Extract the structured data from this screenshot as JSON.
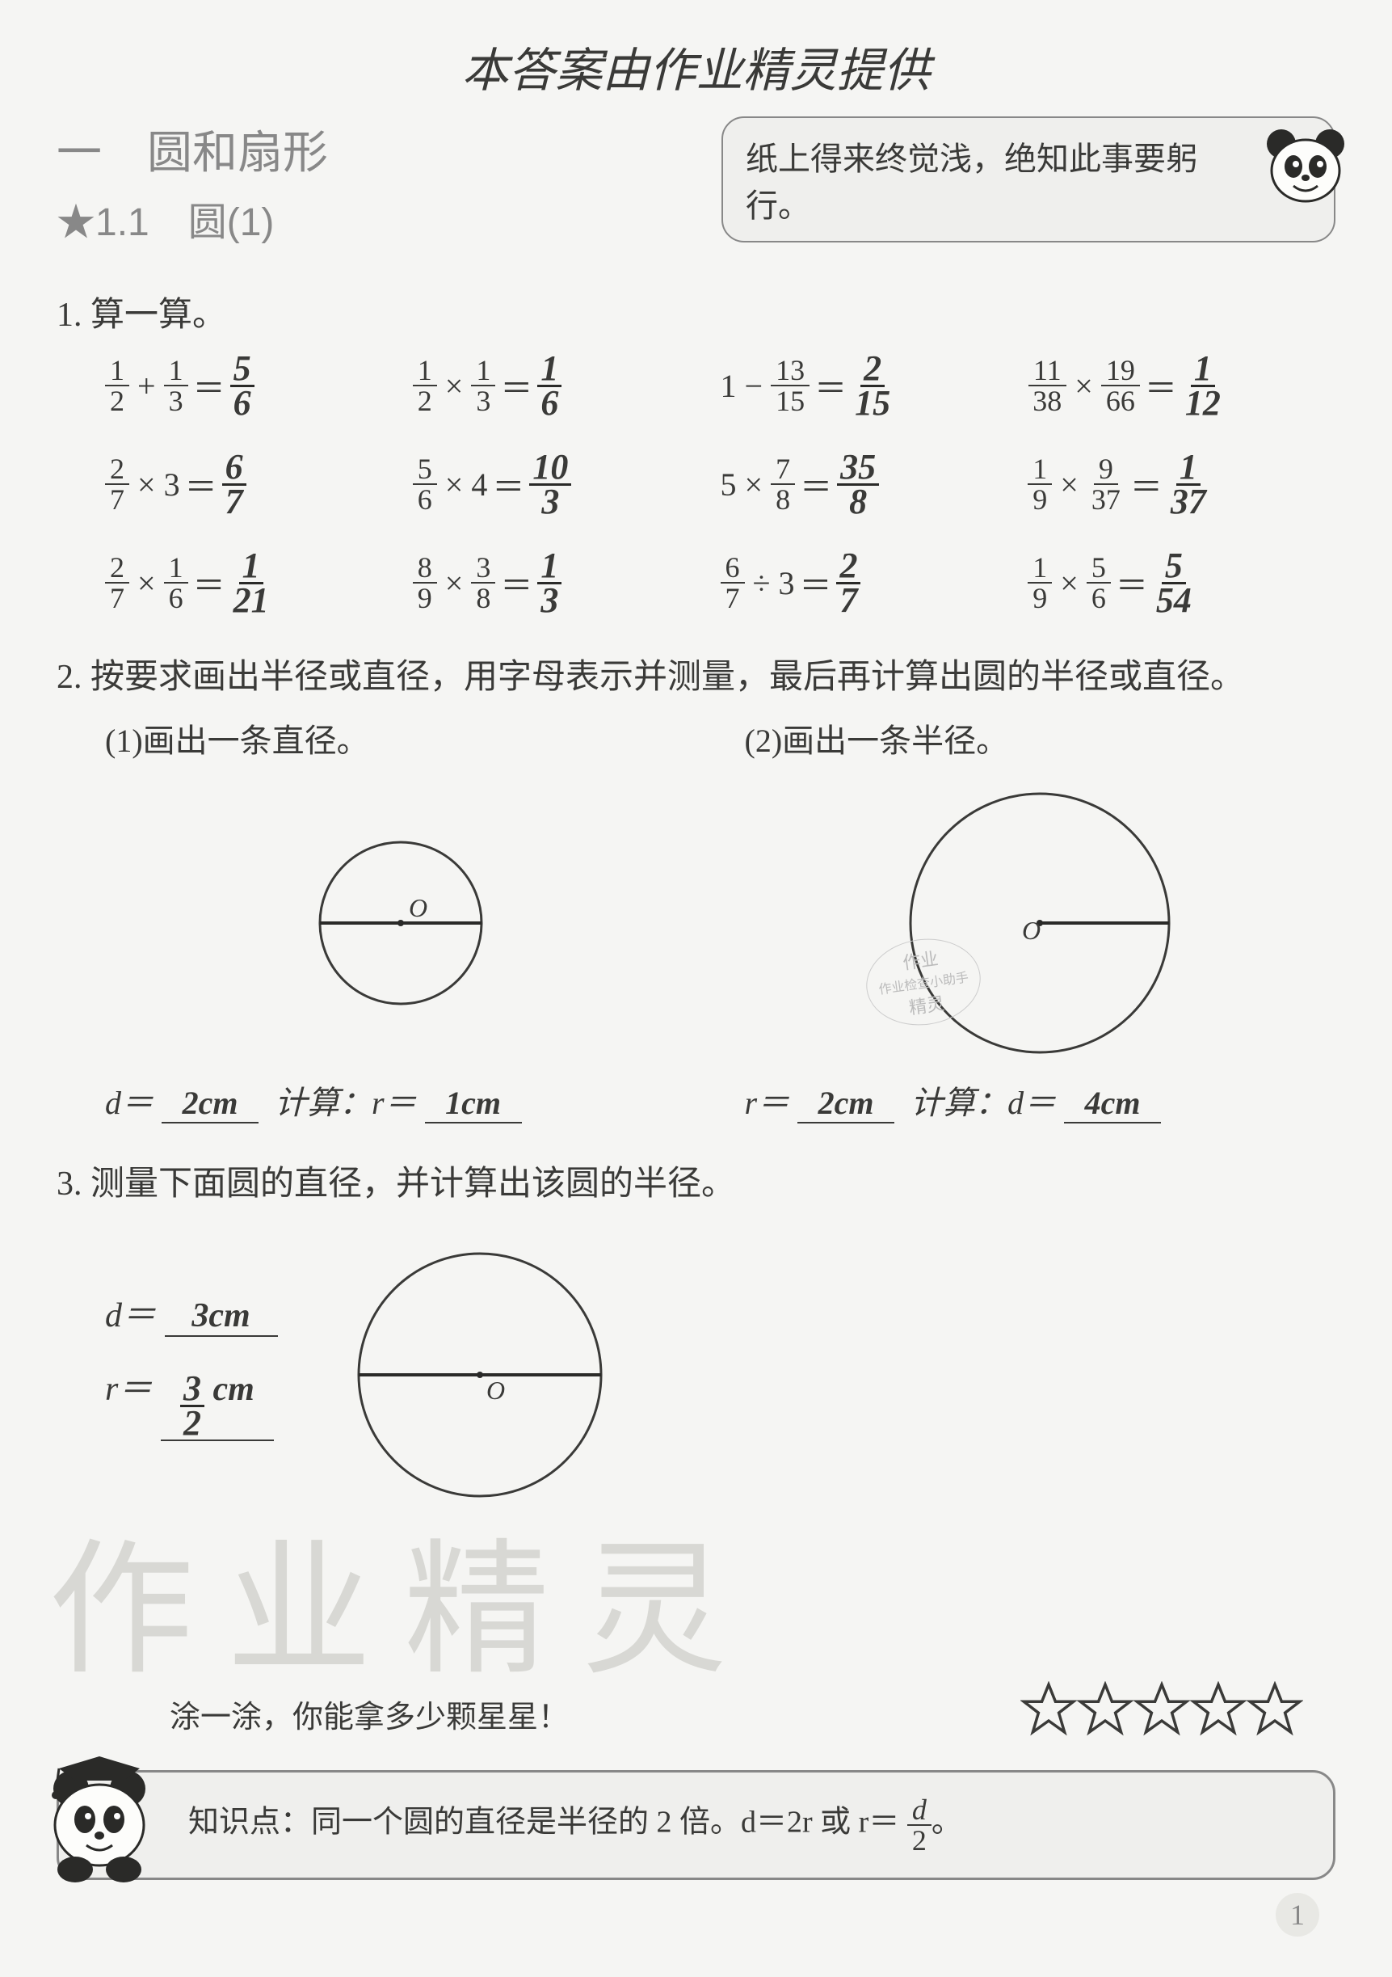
{
  "top_note": "本答案由作业精灵提供",
  "chapter": {
    "title": "一　圆和扇形",
    "section": "★1.1　圆(1)"
  },
  "quote": "纸上得来终觉浅，绝知此事要躬行。",
  "q1": {
    "label": "1. 算一算。",
    "items": [
      {
        "expr_n1": "1",
        "expr_d1": "2",
        "op": "+",
        "expr_n2": "1",
        "expr_d2": "3",
        "ans_n": "5",
        "ans_d": "6"
      },
      {
        "expr_n1": "1",
        "expr_d1": "2",
        "op": "×",
        "expr_n2": "1",
        "expr_d2": "3",
        "ans_n": "1",
        "ans_d": "6"
      },
      {
        "expr_whole": "1",
        "op": "−",
        "expr_n2": "13",
        "expr_d2": "15",
        "ans_n": "2",
        "ans_d": "15"
      },
      {
        "expr_n1": "11",
        "expr_d1": "38",
        "op": "×",
        "expr_n2": "19",
        "expr_d2": "66",
        "ans_n": "1",
        "ans_d": "12"
      },
      {
        "expr_n1": "2",
        "expr_d1": "7",
        "op": "×",
        "expr_whole2": "3",
        "ans_n": "6",
        "ans_d": "7"
      },
      {
        "expr_n1": "5",
        "expr_d1": "6",
        "op": "×",
        "expr_whole2": "4",
        "ans_n": "10",
        "ans_d": "3"
      },
      {
        "expr_whole": "5",
        "op": "×",
        "expr_n2": "7",
        "expr_d2": "8",
        "ans_n": "35",
        "ans_d": "8"
      },
      {
        "expr_n1": "1",
        "expr_d1": "9",
        "op": "×",
        "expr_n2": "9",
        "expr_d2": "37",
        "ans_n": "1",
        "ans_d": "37"
      },
      {
        "expr_n1": "2",
        "expr_d1": "7",
        "op": "×",
        "expr_n2": "1",
        "expr_d2": "6",
        "ans_n": "1",
        "ans_d": "21"
      },
      {
        "expr_n1": "8",
        "expr_d1": "9",
        "op": "×",
        "expr_n2": "3",
        "expr_d2": "8",
        "ans_n": "1",
        "ans_d": "3"
      },
      {
        "expr_n1": "6",
        "expr_d1": "7",
        "op": "÷",
        "expr_whole2": "3",
        "ans_n": "2",
        "ans_d": "7"
      },
      {
        "expr_n1": "1",
        "expr_d1": "9",
        "op": "×",
        "expr_n2": "5",
        "expr_d2": "6",
        "ans_n": "5",
        "ans_d": "54"
      }
    ]
  },
  "q2": {
    "label": "2. 按要求画出半径或直径，用字母表示并测量，最后再计算出圆的半径或直径。",
    "sub1": {
      "label": "(1)画出一条直径。",
      "circle": {
        "r": 100,
        "color": "#3a3a38",
        "has_diameter": true,
        "center_label": "O"
      },
      "d_val": "2cm",
      "calc_label": "计算：r＝",
      "r_val": "1cm",
      "prefix": "d＝"
    },
    "sub2": {
      "label": "(2)画出一条半径。",
      "circle": {
        "r": 160,
        "color": "#3a3a38",
        "has_radius": true,
        "center_label": "O"
      },
      "r_val": "2cm",
      "calc_label": "计算：d＝",
      "d_val": "4cm",
      "prefix": "r＝",
      "stamp_lines": [
        "作业",
        "作业检查小助手",
        "精灵"
      ]
    }
  },
  "q3": {
    "label": "3. 测量下面圆的直径，并计算出该圆的半径。",
    "d_prefix": "d＝",
    "d_val": "3cm",
    "r_prefix": "r＝",
    "r_val_n": "3",
    "r_val_d": "2",
    "r_unit": "cm",
    "circle": {
      "r": 150,
      "color": "#3a3a38",
      "has_diameter": true,
      "center_label": "O"
    }
  },
  "watermark": "作业精灵",
  "footer": {
    "stars_prompt": "涂一涂，你能拿多少颗星星！",
    "star_count": 5,
    "knowledge_prefix": "知识点：",
    "knowledge": "同一个圆的直径是半径的 2 倍。d＝2r 或 r＝",
    "knowledge_frac_n": "d",
    "knowledge_frac_d": "2",
    "knowledge_suffix": "。"
  },
  "page_number": "1",
  "colors": {
    "bg": "#f5f5f3",
    "text": "#3a3a38",
    "muted": "#888888",
    "box_bg": "#efefed",
    "watermark": "#d8d8d4"
  }
}
